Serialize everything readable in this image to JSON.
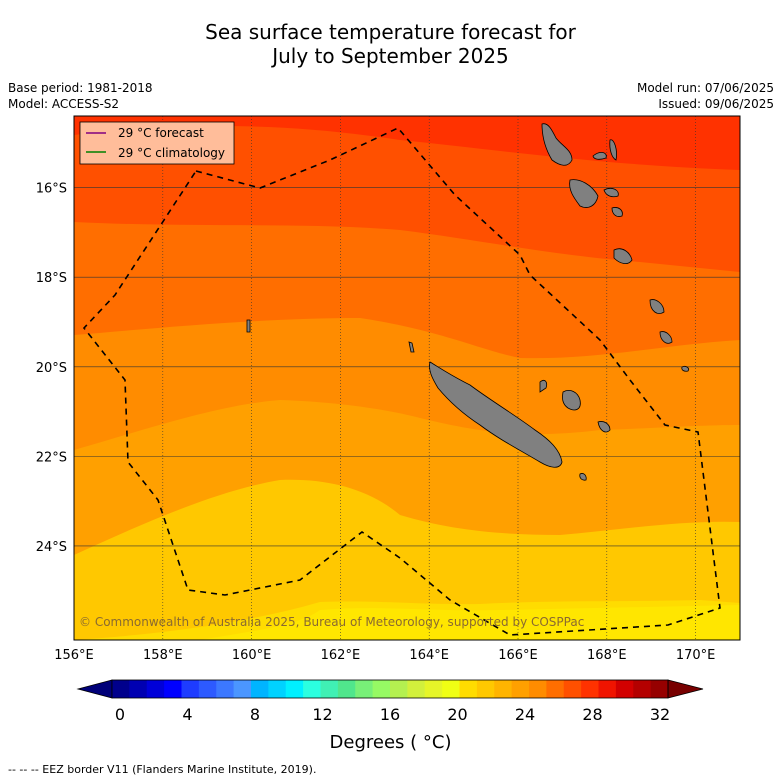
{
  "title": {
    "line1": "Sea surface temperature forecast for",
    "line2": "July to September 2025"
  },
  "meta": {
    "base_period": "Base period: 1981-2018",
    "model": "Model: ACCESS-S2",
    "model_run": "Model run: 07/06/2025",
    "issued": "Issued: 09/06/2025"
  },
  "legend": {
    "forecast_label": "29 °C  forecast",
    "forecast_color": "#800080",
    "climatology_label": "29 °C  climatology",
    "climatology_color": "#008000"
  },
  "map": {
    "lon_range": [
      156,
      171
    ],
    "lat_range": [
      -26.1,
      -14.4
    ],
    "lon_ticks": [
      "156°E",
      "158°E",
      "160°E",
      "162°E",
      "164°E",
      "166°E",
      "168°E",
      "170°E"
    ],
    "lat_ticks": [
      "16°S",
      "18°S",
      "20°S",
      "22°S",
      "24°S"
    ],
    "copyright": "© Commonwealth of Australia 2025, Bureau of Meteorology, supported by COSPPac",
    "land_color": "#808080"
  },
  "colorbar": {
    "tick_labels": [
      "0",
      "4",
      "8",
      "12",
      "16",
      "20",
      "24",
      "28",
      "32"
    ],
    "colors": [
      "#00008c",
      "#0000b2",
      "#0000d9",
      "#0000ff",
      "#1e3cff",
      "#2d5aff",
      "#3c78ff",
      "#4b96ff",
      "#00b4ff",
      "#00d2ff",
      "#00f0ff",
      "#2bffe0",
      "#40f0b4",
      "#50e68c",
      "#78f078",
      "#96fa64",
      "#b4f050",
      "#d2f03c",
      "#e6f528",
      "#f0ff14",
      "#ffdc00",
      "#ffc800",
      "#ffb400",
      "#ffa000",
      "#ff8c00",
      "#ff6e00",
      "#ff5000",
      "#ff3200",
      "#f01400",
      "#d20000",
      "#b40000",
      "#960000"
    ],
    "low_color": "#000078",
    "high_color": "#780000",
    "units": "Degrees ( °C)"
  },
  "footnote": "--  --  -- EEZ border V11 (Flanders Marine Institute, 2019)."
}
